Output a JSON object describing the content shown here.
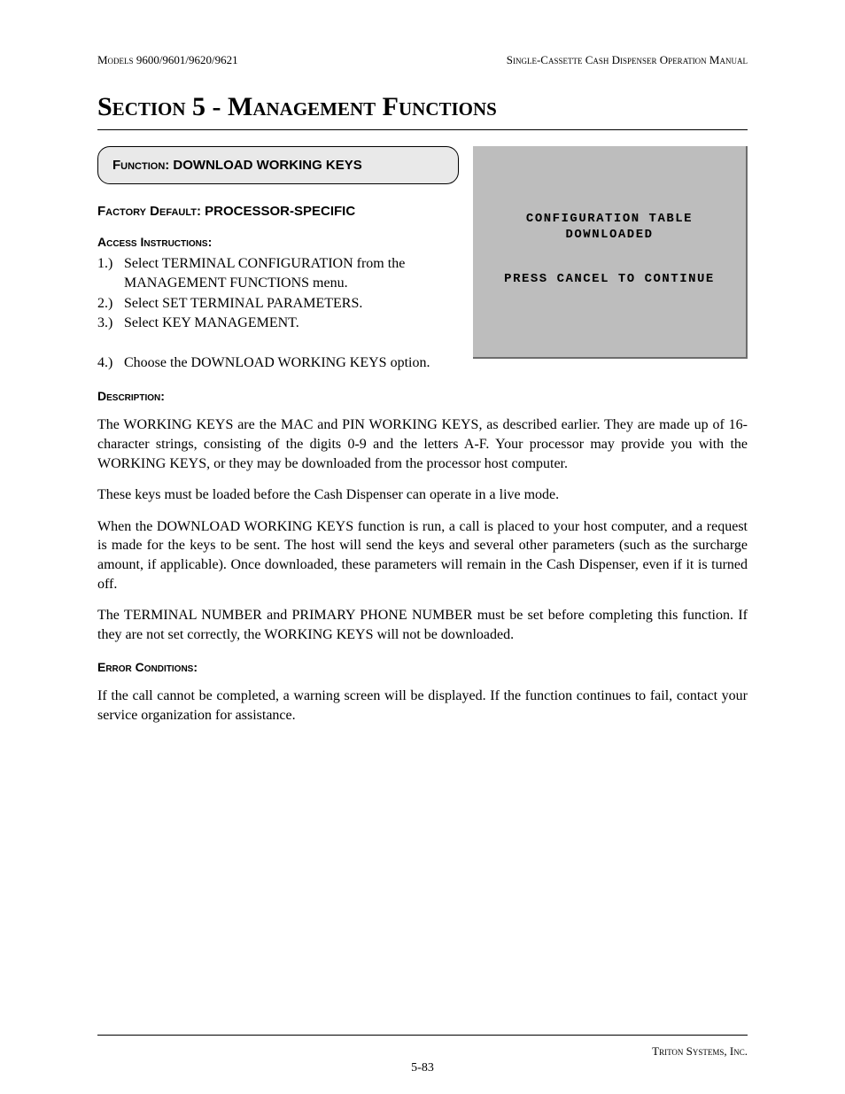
{
  "header": {
    "left_prefix": "Models",
    "left_models": " 9600/9601/9620/9621",
    "right": "Single-Cassette Cash Dispenser Operation Manual"
  },
  "section_title": "Section 5 - Management Functions",
  "function_box": {
    "label": "Function:",
    "name": "  DOWNLOAD WORKING KEYS"
  },
  "factory_default": {
    "label": "Factory Default:",
    "value": " PROCESSOR-SPECIFIC"
  },
  "access_label": "Access Instructions:",
  "instructions": [
    {
      "num": "1.)",
      "text": "Select TERMINAL CONFIGURATION from the MANAGEMENT FUNCTIONS menu."
    },
    {
      "num": "2.)",
      "text": "Select SET TERMINAL PARAMETERS."
    },
    {
      "num": "3.)",
      "text": "Select KEY MANAGEMENT."
    },
    {
      "num": "4.)",
      "text": "Choose the DOWNLOAD WORKING KEYS option."
    }
  ],
  "screen": {
    "line1": "CONFIGURATION TABLE",
    "line2": "DOWNLOADED",
    "line3": "PRESS CANCEL TO CONTINUE"
  },
  "description_label": "Description:",
  "description_paragraphs": [
    "The WORKING KEYS are  the MAC and PIN WORKING KEYS, as described earlier.  They are made up of 16-character strings, consisting of the digits 0-9 and the letters A-F. Your processor may provide you with the WORKING KEYS, or they may be downloaded from the processor host computer.",
    "These keys must be loaded before the Cash Dispenser can operate in a live mode.",
    "When the DOWNLOAD WORKING KEYS  function is run, a call is placed to your host computer, and a request is made for the keys to be sent.  The host will send the keys and several other parameters (such as the surcharge amount, if applicable).  Once downloaded, these parameters will remain in the Cash Dispenser, even if it is turned off.",
    "The TERMINAL NUMBER and PRIMARY PHONE NUMBER must be set before completing this function.  If they are not set correctly, the WORKING KEYS will not be downloaded."
  ],
  "error_label": "Error Conditions:",
  "error_text": "If the call cannot be completed, a warning screen will be displayed.  If the function continues to fail, contact your service organization for assistance.",
  "footer": {
    "company": "Triton Systems, Inc.",
    "page": "5-83"
  }
}
